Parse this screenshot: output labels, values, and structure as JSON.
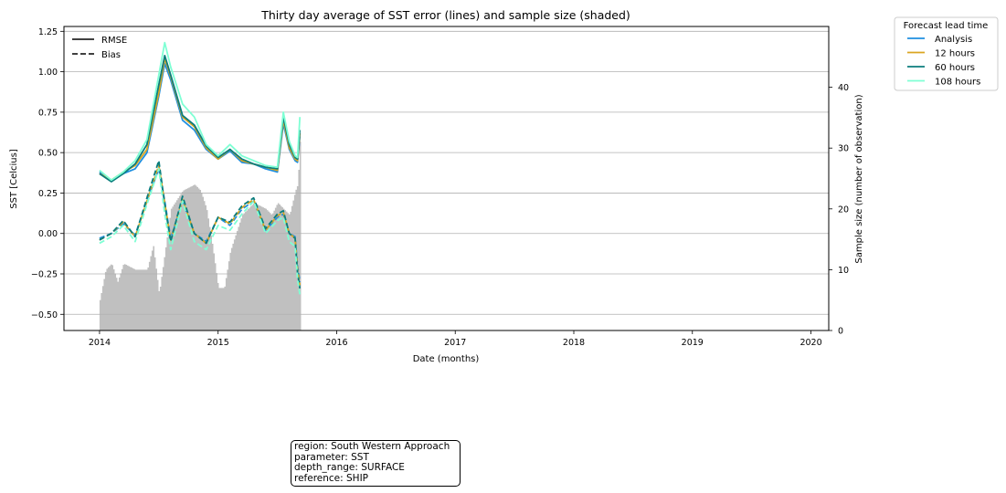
{
  "chart_data": {
    "type": "line",
    "title": "Thirty day average of SST error (lines) and sample size (shaded)",
    "xlabel": "Date (months)",
    "ylabel": "SST [Celcius]",
    "y2label": "Sample size (number of observation)",
    "xlim": [
      2013.7,
      2020.15
    ],
    "ylim": [
      -0.6,
      1.28
    ],
    "y2lim": [
      0,
      50
    ],
    "x_ticks": [
      "2014",
      "2015",
      "2016",
      "2017",
      "2018",
      "2019",
      "2020"
    ],
    "x_tick_values": [
      2014,
      2015,
      2016,
      2017,
      2018,
      2019,
      2020
    ],
    "y_ticks": [
      "1.25",
      "1.00",
      "0.75",
      "0.50",
      "0.25",
      "0.00",
      "−0.25",
      "−0.50"
    ],
    "y_tick_values": [
      1.25,
      1.0,
      0.75,
      0.5,
      0.25,
      0.0,
      -0.25,
      -0.5
    ],
    "y2_ticks": [
      "40",
      "30",
      "20",
      "10",
      "0"
    ],
    "y2_tick_values": [
      40,
      30,
      20,
      10,
      0
    ],
    "grid": "horizontal",
    "style_legend": {
      "placement": "top-left",
      "entries": [
        {
          "label": "RMSE",
          "dash": "solid"
        },
        {
          "label": "Bias",
          "dash": "dashed"
        }
      ]
    },
    "series_legend": {
      "title": "Forecast lead time",
      "placement": "outside-top-right"
    },
    "x": [
      2014.0,
      2014.1,
      2014.2,
      2014.3,
      2014.4,
      2014.5,
      2014.55,
      2014.6,
      2014.7,
      2014.8,
      2014.9,
      2015.0,
      2015.1,
      2015.2,
      2015.3,
      2015.4,
      2015.5,
      2015.55,
      2015.6,
      2015.65,
      2015.67,
      2015.69
    ],
    "series": [
      {
        "name": "Analysis",
        "color": "#1f8fe0",
        "rmse": [
          0.38,
          0.33,
          0.37,
          0.4,
          0.5,
          0.85,
          1.05,
          0.95,
          0.7,
          0.64,
          0.52,
          0.46,
          0.51,
          0.44,
          0.43,
          0.4,
          0.38,
          0.68,
          0.52,
          0.45,
          0.44,
          0.6
        ],
        "bias": [
          -0.03,
          0.0,
          0.06,
          -0.01,
          0.2,
          0.4,
          0.2,
          -0.03,
          0.2,
          0.0,
          -0.05,
          0.1,
          0.05,
          0.15,
          0.2,
          0.02,
          0.1,
          0.12,
          0.0,
          -0.02,
          -0.2,
          -0.3
        ]
      },
      {
        "name": "12 hours",
        "color": "#daa520",
        "rmse": [
          0.37,
          0.33,
          0.38,
          0.42,
          0.52,
          0.87,
          1.08,
          0.97,
          0.72,
          0.66,
          0.53,
          0.46,
          0.52,
          0.45,
          0.43,
          0.41,
          0.39,
          0.7,
          0.53,
          0.46,
          0.45,
          0.62
        ],
        "bias": [
          -0.04,
          0.0,
          0.07,
          -0.02,
          0.2,
          0.42,
          0.19,
          -0.04,
          0.21,
          0.0,
          -0.06,
          0.1,
          0.06,
          0.16,
          0.21,
          0.02,
          0.11,
          0.13,
          0.0,
          -0.03,
          -0.22,
          -0.32
        ]
      },
      {
        "name": "60 hours",
        "color": "#0b7d7d",
        "rmse": [
          0.37,
          0.32,
          0.37,
          0.43,
          0.55,
          0.92,
          1.1,
          0.98,
          0.73,
          0.67,
          0.54,
          0.47,
          0.52,
          0.46,
          0.43,
          0.41,
          0.4,
          0.72,
          0.55,
          0.47,
          0.46,
          0.64
        ],
        "bias": [
          -0.04,
          0.0,
          0.08,
          -0.02,
          0.22,
          0.45,
          0.18,
          -0.05,
          0.23,
          0.0,
          -0.06,
          0.1,
          0.07,
          0.17,
          0.22,
          0.03,
          0.12,
          0.14,
          0.0,
          -0.03,
          -0.24,
          -0.34
        ]
      },
      {
        "name": "108 hours",
        "color": "#7fffd4",
        "rmse": [
          0.39,
          0.33,
          0.38,
          0.45,
          0.58,
          0.98,
          1.18,
          1.03,
          0.8,
          0.72,
          0.55,
          0.48,
          0.55,
          0.48,
          0.45,
          0.42,
          0.41,
          0.75,
          0.57,
          0.48,
          0.47,
          0.72
        ],
        "bias": [
          -0.06,
          -0.02,
          0.05,
          -0.05,
          0.18,
          0.4,
          0.12,
          -0.1,
          0.2,
          -0.05,
          -0.1,
          0.05,
          0.02,
          0.12,
          0.2,
          0.0,
          0.08,
          0.1,
          -0.05,
          -0.08,
          -0.28,
          -0.38
        ]
      }
    ],
    "sample_size": {
      "color": "#c0c0c0",
      "x": [
        2014.0,
        2014.05,
        2014.1,
        2014.15,
        2014.2,
        2014.3,
        2014.4,
        2014.45,
        2014.5,
        2014.55,
        2014.6,
        2014.7,
        2014.8,
        2014.85,
        2014.9,
        2014.95,
        2015.0,
        2015.05,
        2015.1,
        2015.2,
        2015.3,
        2015.4,
        2015.45,
        2015.5,
        2015.55,
        2015.6,
        2015.65,
        2015.67,
        2015.68,
        2015.69
      ],
      "values": [
        5,
        10,
        11,
        8,
        11,
        10,
        10,
        14,
        6,
        13,
        20,
        23,
        24,
        23,
        20,
        14,
        7,
        7,
        13,
        19,
        21,
        20,
        19,
        21,
        20,
        19,
        23,
        24,
        28,
        32
      ]
    }
  },
  "info_box": {
    "region": "region: South Western Approach",
    "parameter": "parameter: SST",
    "depth_range": "depth_range: SURFACE",
    "reference": "reference: SHIP"
  }
}
